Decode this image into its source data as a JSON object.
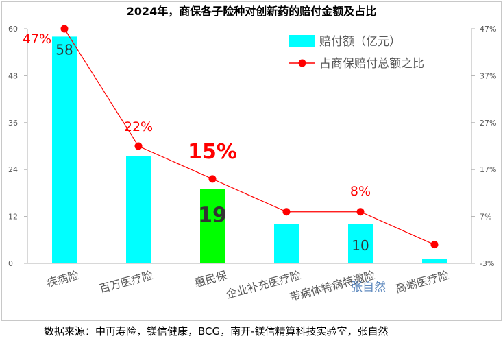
{
  "chart_data": {
    "type": "bar",
    "title": "2024年，商保各子险种对创新药的赔付金额及占比",
    "categories": [
      "疾病险",
      "百万医疗险",
      "惠民保",
      "企业补充医疗险",
      "带病体特病特邀险",
      "高端医疗险"
    ],
    "series": [
      {
        "name": "赔付额（亿元）",
        "type": "bar",
        "axis": "left",
        "values": [
          58,
          27.5,
          19,
          10,
          10,
          1.2
        ],
        "labels": [
          "58",
          "",
          "19",
          "",
          "10",
          ""
        ],
        "colors": [
          "#00ffff",
          "#00ffff",
          "#00ff00",
          "#00ffff",
          "#00ffff",
          "#00ffff"
        ]
      },
      {
        "name": "占商保赔付总额之比",
        "type": "line",
        "axis": "right",
        "values": [
          0.47,
          0.22,
          0.15,
          0.08,
          0.08,
          0.01
        ],
        "labels": [
          "47%",
          "22%",
          "15%",
          "",
          "8%",
          ""
        ],
        "color": "#ff0000"
      }
    ],
    "y_left": {
      "ticks": [
        "0",
        "12",
        "24",
        "36",
        "48",
        "60"
      ],
      "range": [
        0,
        60
      ]
    },
    "y_right": {
      "ticks": [
        "-3%",
        "7%",
        "17%",
        "27%",
        "37%",
        "47%"
      ],
      "range": [
        -0.03,
        0.47
      ]
    },
    "legend_position": "top-right",
    "grid": false
  },
  "watermark": "张自然",
  "source": "数据来源：中再寿险，镁信健康，BCG，南开-镁信精算科技实验室，张自然"
}
